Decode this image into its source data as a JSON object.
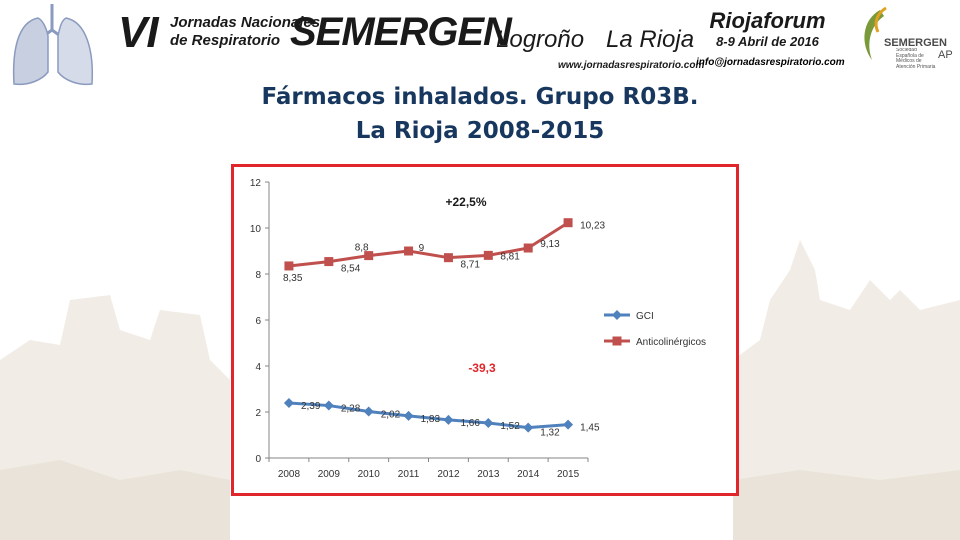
{
  "header": {
    "event_roman": "VI",
    "event_line1": "Jornadas Nacionales",
    "event_line2": "de Respiratorio",
    "event_brand": "SEMERGEN",
    "event_city": "Logroño",
    "event_region": "La Rioja",
    "event_web": "www.jornadasrespiratorio.com",
    "venue_name": "Riojaforum",
    "venue_date": "8-9 Abril de 2016",
    "venue_mail": "info@jornadasrespiratorio.com",
    "logo_brand": "SEMERGEN",
    "logo_suffix": "AP",
    "logo_desc": "Sociedad Española de Médicos de Atención Primaria"
  },
  "slide": {
    "title_line1": "Fármacos inhalados. Grupo R03B.",
    "title_line2": "La Rioja 2008-2015"
  },
  "colors": {
    "title": "#17375e",
    "frame": "#e0262b",
    "gci": "#4f81bd",
    "anticolinergicos": "#c0504d",
    "annotation_red": "#e0262b"
  },
  "chart_data": {
    "type": "line",
    "x": [
      "2008",
      "2009",
      "2010",
      "2011",
      "2012",
      "2013",
      "2014",
      "2015"
    ],
    "series": [
      {
        "name": "GCI",
        "values": [
          2.39,
          2.28,
          2.02,
          1.83,
          1.66,
          1.52,
          1.32,
          1.45
        ],
        "labels": [
          "2,39",
          "2,28",
          "2,02",
          "1,83",
          "1,66",
          "1,52",
          "1,32",
          "1,45"
        ],
        "marker": "diamond"
      },
      {
        "name": "Anticolinérgicos",
        "values": [
          8.35,
          8.54,
          8.8,
          9,
          8.71,
          8.81,
          9.13,
          10.23
        ],
        "labels": [
          "8,35",
          "8,54",
          "8,8",
          "9",
          "8,71",
          "8,81",
          "9,13",
          "10,23"
        ],
        "marker": "square"
      }
    ],
    "ylim": [
      0,
      12
    ],
    "yticks": [
      0,
      2,
      4,
      6,
      8,
      10,
      12
    ],
    "legend": "right",
    "annotations": [
      {
        "text": "+22,5%",
        "series": "Anticolinérgicos"
      },
      {
        "text": "-39,3",
        "series": "GCI"
      }
    ]
  }
}
